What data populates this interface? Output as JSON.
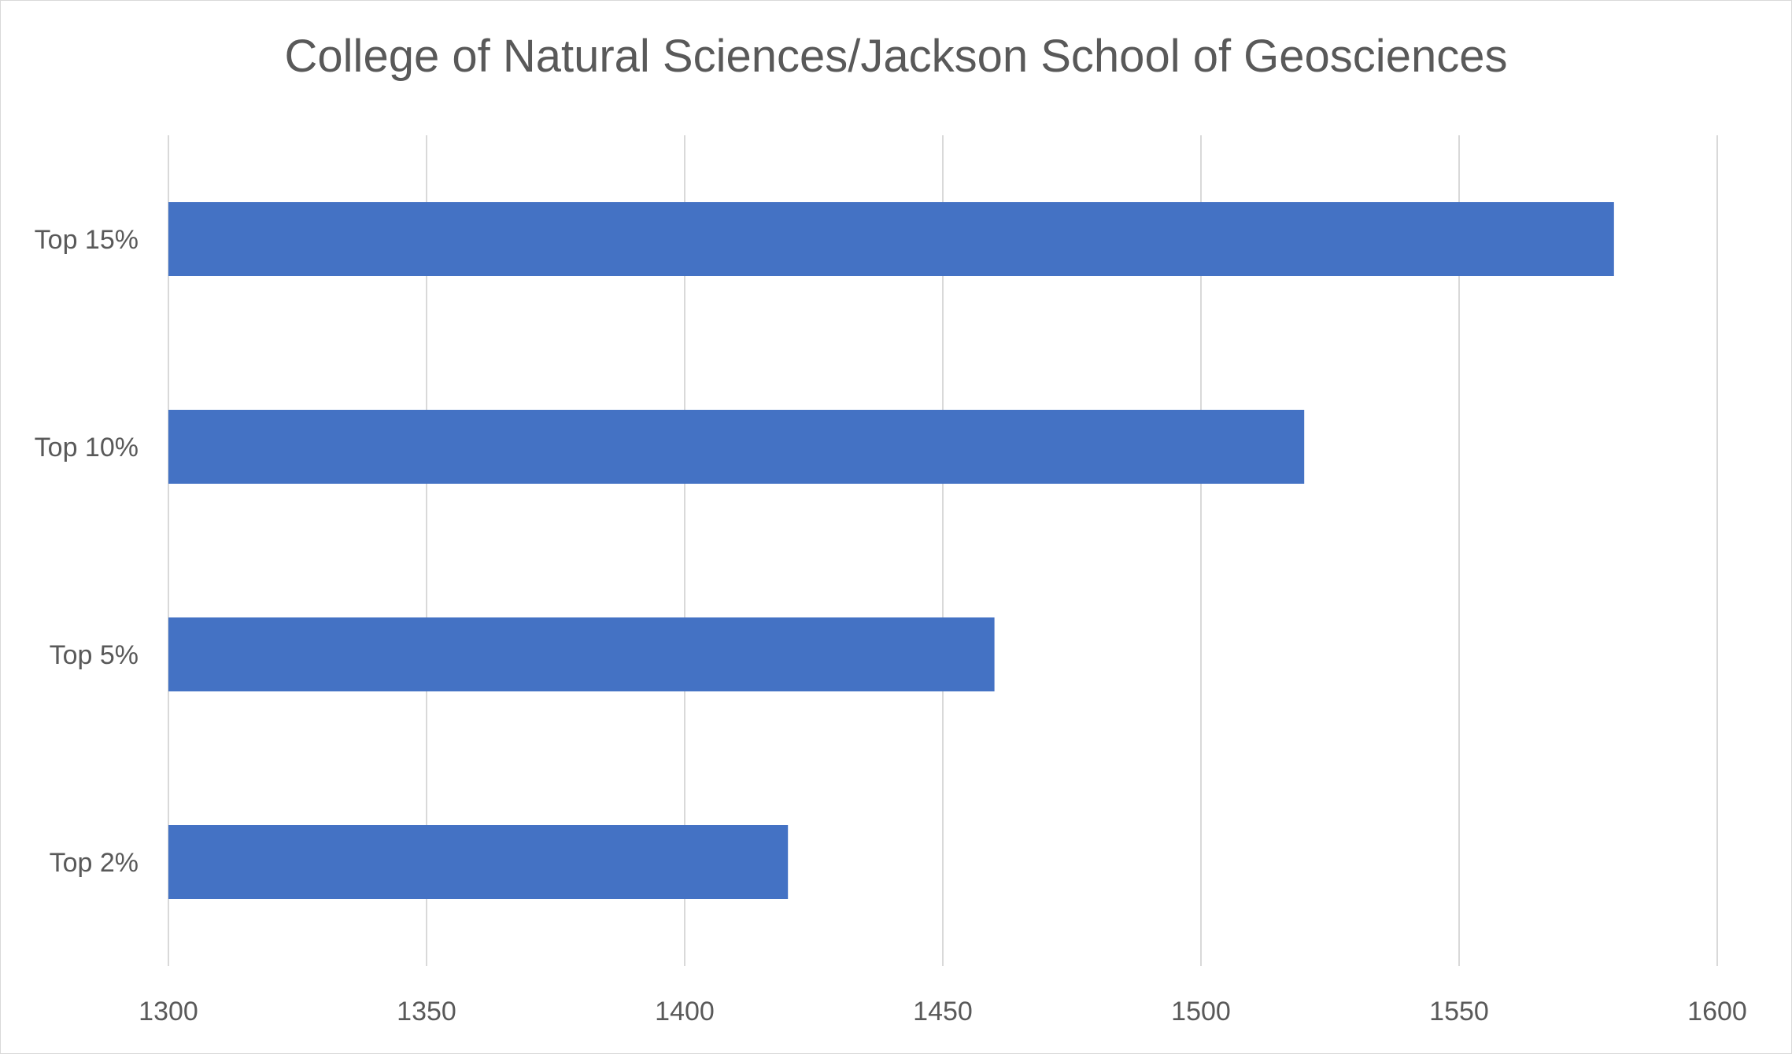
{
  "chart_data": {
    "type": "bar",
    "orientation": "horizontal",
    "title": "College of Natural Sciences/Jackson School of Geosciences",
    "categories": [
      "Top 15%",
      "Top 10%",
      "Top 5%",
      "Top 2%"
    ],
    "values": [
      1580,
      1520,
      1460,
      1420
    ],
    "xlim": [
      1300,
      1600
    ],
    "xticks": [
      "1300",
      "1350",
      "1400",
      "1450",
      "1500",
      "1550",
      "1600"
    ],
    "xtick_values": [
      1300,
      1350,
      1400,
      1450,
      1500,
      1550,
      1600
    ],
    "grid": "vertical",
    "legend": "none",
    "bar_color": "#4472C4",
    "grid_color": "#d9d9d9"
  }
}
